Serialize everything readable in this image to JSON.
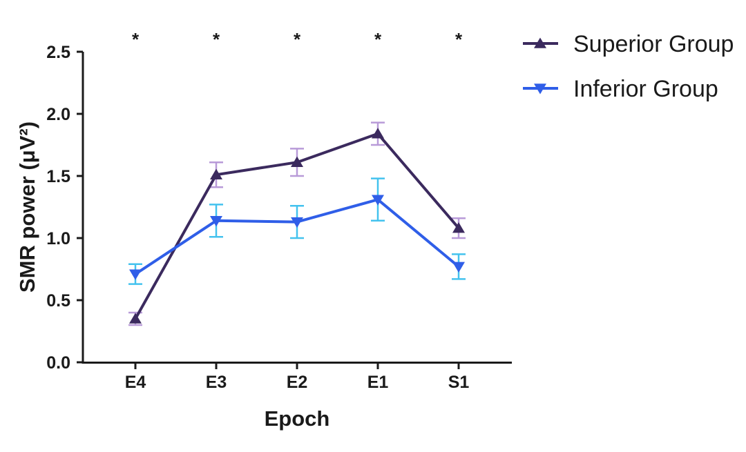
{
  "chart_data": {
    "type": "line",
    "categories": [
      "E4",
      "E3",
      "E2",
      "E1",
      "S1"
    ],
    "xlabel": "Epoch",
    "ylabel": "SMR power (μV²)",
    "ylim": [
      0,
      2.5
    ],
    "yticks": [
      "0.0",
      "0.5",
      "1.0",
      "1.5",
      "2.0",
      "2.5"
    ],
    "significance": [
      "*",
      "*",
      "*",
      "*",
      "*"
    ],
    "grid": false,
    "legend_position": "top-right",
    "series": [
      {
        "name": "Superior Group",
        "marker": "triangle-up",
        "color": "#3b2a5e",
        "error_color": "#b89ad8",
        "values": [
          0.35,
          1.51,
          1.61,
          1.84,
          1.08
        ],
        "errors": [
          0.05,
          0.1,
          0.11,
          0.09,
          0.08
        ]
      },
      {
        "name": "Inferior Group",
        "marker": "triangle-down",
        "color": "#2f5ee8",
        "error_color": "#43c2ee",
        "values": [
          0.71,
          1.14,
          1.13,
          1.31,
          0.77
        ],
        "errors": [
          0.08,
          0.13,
          0.13,
          0.17,
          0.1
        ]
      }
    ]
  }
}
